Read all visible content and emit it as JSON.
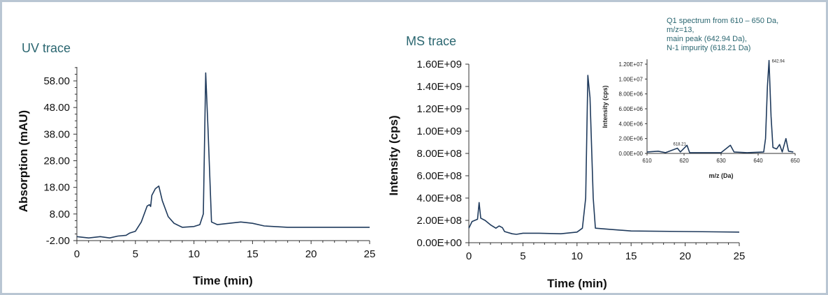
{
  "chart_data": [
    {
      "type": "line",
      "title": "UV trace",
      "xlabel": "Time (min)",
      "ylabel": "Absorption (mAU)",
      "xlim": [
        0,
        25
      ],
      "ylim": [
        -2,
        62
      ],
      "xticks": [
        "0",
        "5",
        "10",
        "15",
        "20",
        "25"
      ],
      "yticks": [
        "-2.00",
        "8.00",
        "18.00",
        "28.00",
        "38.00",
        "48.00",
        "58.00"
      ],
      "grid": false,
      "color": "#1f3a5c",
      "series": [
        {
          "x": [
            0,
            1,
            2,
            2.8,
            3.5,
            4.2,
            4.5,
            5,
            5.5,
            6,
            6.2,
            6.3,
            6.4,
            6.7,
            7,
            7.3,
            7.8,
            8.3,
            9,
            10,
            10.5,
            10.8,
            11,
            11.2,
            11.5,
            12,
            13,
            14,
            15,
            16,
            18,
            20,
            25
          ],
          "y": [
            -0.5,
            -1,
            -0.5,
            -1,
            -0.3,
            0,
            0.8,
            1.5,
            5,
            11,
            11.5,
            10.8,
            15,
            17.5,
            18.5,
            13,
            7,
            4.5,
            3,
            3.3,
            4,
            8,
            61,
            40,
            5,
            4,
            4.5,
            5,
            4.5,
            3.5,
            3,
            3,
            3
          ]
        }
      ]
    },
    {
      "type": "line",
      "title": "MS trace",
      "xlabel": "Time (min)",
      "ylabel": "Intensity (cps)",
      "xlim": [
        0,
        25
      ],
      "ylim": [
        0,
        1600000000.0
      ],
      "xticks": [
        "0",
        "5",
        "10",
        "15",
        "20",
        "25"
      ],
      "yticks": [
        "0.00E+00",
        "2.00E+08",
        "4.00E+08",
        "6.00E+08",
        "8.00E+08",
        "1.00E+09",
        "1.20E+09",
        "1.40E+09",
        "1.60E+09"
      ],
      "grid": false,
      "color": "#1f3a5c",
      "series": [
        {
          "x": [
            0,
            0.3,
            0.8,
            0.95,
            1.1,
            1.5,
            2,
            2.5,
            2.8,
            3.1,
            3.3,
            4,
            4.4,
            5,
            6.5,
            8.5,
            10,
            10.5,
            10.8,
            11,
            11.2,
            11.5,
            11.7,
            13,
            15,
            20,
            25
          ],
          "y": [
            130000000.0,
            190000000.0,
            210000000.0,
            360000000.0,
            220000000.0,
            200000000.0,
            160000000.0,
            130000000.0,
            150000000.0,
            135000000.0,
            100000000.0,
            80000000.0,
            75000000.0,
            85000000.0,
            85000000.0,
            80000000.0,
            95000000.0,
            130000000.0,
            400000000.0,
            1500000000.0,
            1300000000.0,
            400000000.0,
            130000000.0,
            120000000.0,
            105000000.0,
            100000000.0,
            95000000.0
          ]
        }
      ]
    },
    {
      "type": "line",
      "title": "",
      "annotation": [
        "Q1 spectrum from 610 – 650 Da,",
        "m/z=13,",
        "main peak (642.94 Da),",
        "N-1 impurity (618.21 Da)"
      ],
      "peak_labels": [
        {
          "x": 618.21,
          "y": 700000.0,
          "text": "618.21"
        },
        {
          "x": 642.94,
          "y": 12500000.0,
          "text": "642.94"
        }
      ],
      "xlabel": "m/z (Da)",
      "ylabel": "Intensity (cps)",
      "xlim": [
        610,
        650
      ],
      "ylim": [
        0,
        12000000.0
      ],
      "xticks": [
        "610",
        "620",
        "630",
        "640",
        "650"
      ],
      "yticks": [
        "0.00E+00",
        "2.00E+06",
        "4.00E+06",
        "6.00E+06",
        "8.00E+06",
        "1.00E+07",
        "1.20E+07"
      ],
      "grid": false,
      "color": "#1f3a5c",
      "series": [
        {
          "x": [
            610,
            613,
            615,
            618.2,
            619,
            620.8,
            621.5,
            625,
            630,
            632.5,
            633.5,
            637,
            641.5,
            642,
            642.5,
            642.94,
            643.5,
            644,
            645,
            645.8,
            646.5,
            647.5,
            648.2,
            649.5
          ],
          "y": [
            200000.0,
            300000.0,
            100000.0,
            700000.0,
            200000.0,
            1100000.0,
            100000.0,
            100000.0,
            100000.0,
            1100000.0,
            200000.0,
            100000.0,
            200000.0,
            2000000.0,
            9000000.0,
            12500000.0,
            5000000.0,
            800000.0,
            600000.0,
            1200000.0,
            200000.0,
            2000000.0,
            300000.0,
            200000.0
          ]
        }
      ]
    }
  ]
}
